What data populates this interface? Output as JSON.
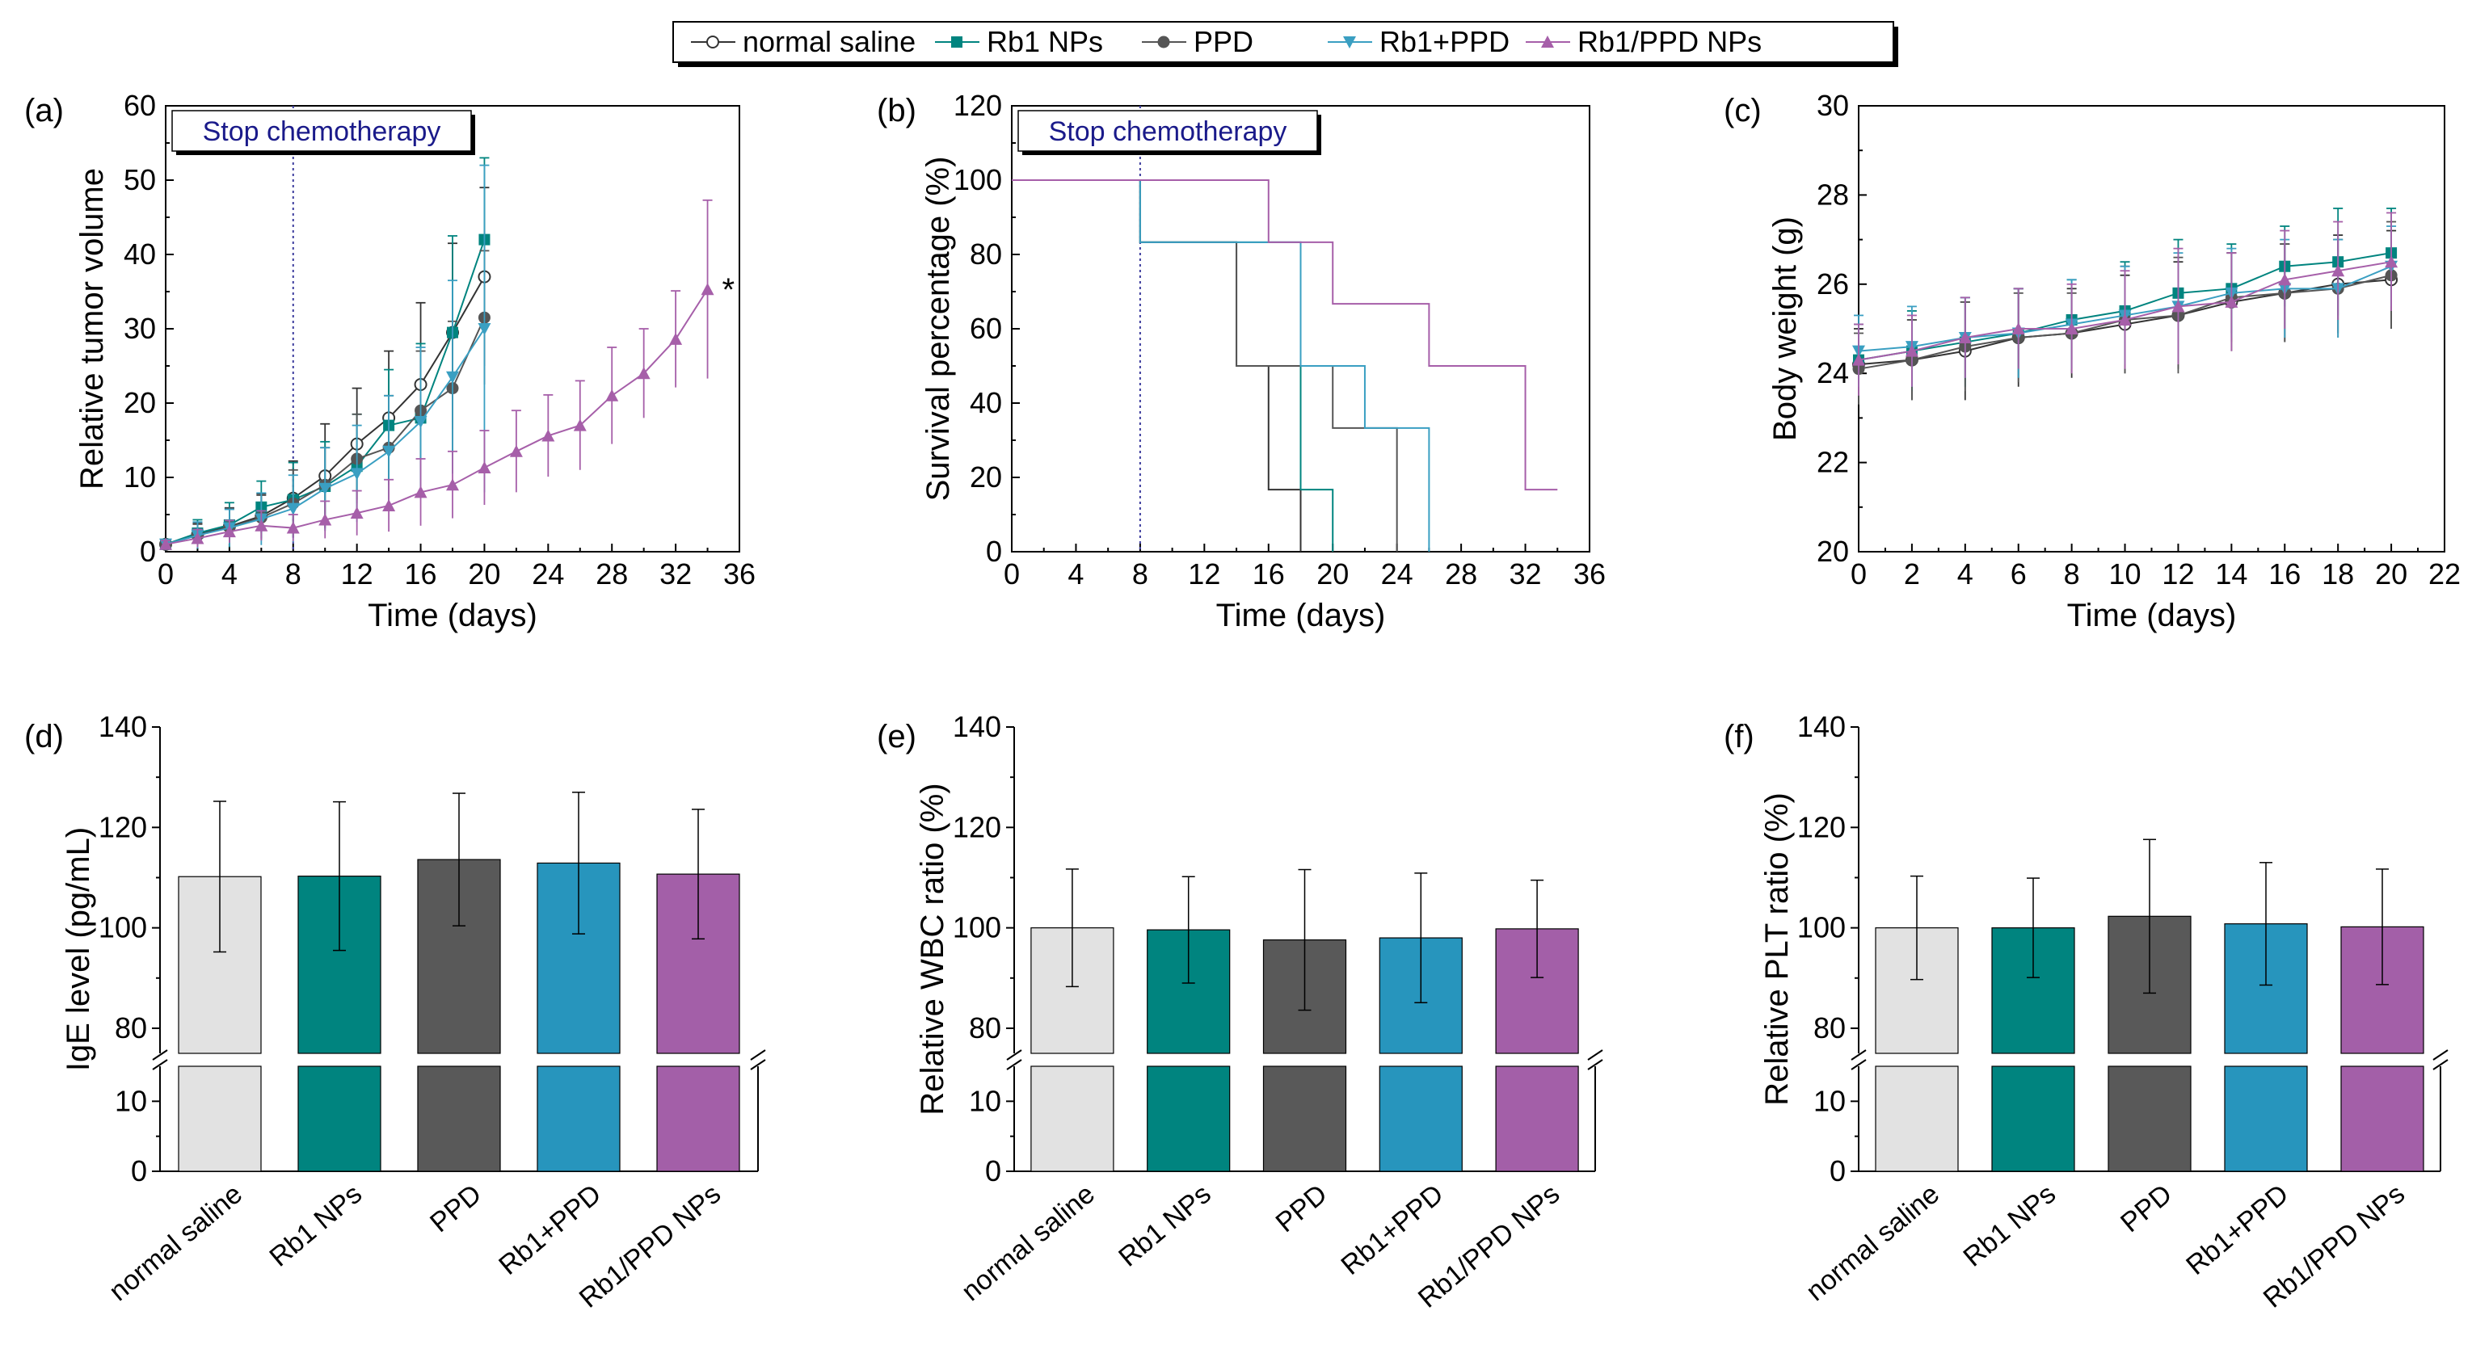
{
  "colors": {
    "normal saline": "#333333",
    "Rb1 NPs": "#00847f",
    "PPD": "#555555",
    "Rb1+PPD": "#3a9fc2",
    "Rb1/PPD NPs": "#a65fa9",
    "bar_fills": [
      "#e2e2e2",
      "#00847f",
      "#595959",
      "#2795bd",
      "#a35fa8"
    ]
  },
  "legend": [
    {
      "name": "normal saline",
      "marker": "open-circle"
    },
    {
      "name": "Rb1 NPs",
      "marker": "square"
    },
    {
      "name": "PPD",
      "marker": "circle"
    },
    {
      "name": "Rb1+PPD",
      "marker": "triangle-down"
    },
    {
      "name": "Rb1/PPD NPs",
      "marker": "triangle-up"
    }
  ],
  "chart_data": [
    {
      "id": "a",
      "panel_label": "(a)",
      "type": "line",
      "xlabel": "Time (days)",
      "ylabel": "Relative tumor volume",
      "xlim": [
        0,
        36
      ],
      "ylim": [
        0,
        60
      ],
      "xticks": [
        "0",
        "4",
        "8",
        "12",
        "16",
        "20",
        "24",
        "28",
        "32",
        "36"
      ],
      "yticks": [
        "0",
        "10",
        "20",
        "30",
        "40",
        "50",
        "60"
      ],
      "annotation": "Stop chemotherapy",
      "marker_line_x": 8,
      "star_label": "*",
      "series": [
        {
          "name": "normal saline",
          "x": [
            0,
            2,
            4,
            6,
            8,
            10,
            12,
            14,
            16,
            18,
            20
          ],
          "y": [
            1,
            2.3,
            3.4,
            4.8,
            7.2,
            10.2,
            14.5,
            18,
            22.5,
            29.5,
            37
          ],
          "err": [
            0.6,
            1.5,
            2.5,
            3,
            5,
            7,
            7.5,
            9,
            11,
            12,
            12
          ]
        },
        {
          "name": "Rb1 NPs",
          "x": [
            0,
            2,
            4,
            6,
            8,
            10,
            12,
            14,
            16,
            18,
            20
          ],
          "y": [
            1,
            2.5,
            3.6,
            6,
            7,
            8.8,
            11.5,
            17,
            18,
            29.5,
            42
          ],
          "err": [
            0.6,
            1.8,
            3,
            3.5,
            5,
            6,
            7,
            7.5,
            10,
            13,
            11
          ]
        },
        {
          "name": "PPD",
          "x": [
            0,
            2,
            4,
            6,
            8,
            10,
            12,
            14,
            16,
            18,
            20
          ],
          "y": [
            1,
            2.2,
            3.3,
            4.6,
            6.5,
            9,
            12.5,
            14,
            19,
            22,
            31.5
          ],
          "err": [
            0.6,
            1.5,
            2.5,
            3,
            4.5,
            5,
            6,
            7,
            8,
            9,
            9
          ]
        },
        {
          "name": "Rb1+PPD",
          "x": [
            0,
            2,
            4,
            6,
            8,
            10,
            12,
            14,
            16,
            18,
            20
          ],
          "y": [
            1,
            2.2,
            3.2,
            4.4,
            5.8,
            8.5,
            10.5,
            13.5,
            17.5,
            23.5,
            30
          ],
          "err": [
            0.6,
            1.8,
            2.5,
            3.5,
            4.5,
            5.5,
            6.5,
            7.5,
            10,
            13,
            22
          ]
        },
        {
          "name": "Rb1/PPD NPs",
          "x": [
            0,
            2,
            4,
            6,
            8,
            10,
            12,
            14,
            16,
            18,
            20,
            22,
            24,
            26,
            28,
            30,
            32,
            34
          ],
          "y": [
            1,
            1.8,
            2.7,
            3.5,
            3.2,
            4.3,
            5.2,
            6.2,
            8,
            9,
            11.3,
            13.5,
            15.6,
            17,
            21,
            24,
            28.6,
            35.3
          ],
          "err": [
            0.5,
            1.2,
            1.5,
            2,
            1.8,
            2.5,
            3,
            3.5,
            4.5,
            4.5,
            5,
            5.5,
            5.5,
            6,
            6.5,
            6,
            6.5,
            12
          ]
        }
      ]
    },
    {
      "id": "b",
      "panel_label": "(b)",
      "type": "line",
      "xlabel": "Time (days)",
      "ylabel": "Survival percentage (%)",
      "xlim": [
        0,
        36
      ],
      "ylim": [
        0,
        120
      ],
      "xticks": [
        "0",
        "4",
        "8",
        "12",
        "16",
        "20",
        "24",
        "28",
        "32",
        "36"
      ],
      "yticks": [
        "0",
        "20",
        "40",
        "60",
        "80",
        "100",
        "120"
      ],
      "annotation": "Stop chemotherapy",
      "marker_line_x": 8,
      "series": [
        {
          "name": "normal saline",
          "x": [
            0,
            8,
            14,
            16,
            18
          ],
          "y": [
            100,
            83.3,
            50,
            16.7,
            0
          ]
        },
        {
          "name": "Rb1 NPs",
          "x": [
            0,
            8,
            10,
            18,
            20
          ],
          "y": [
            100,
            83.3,
            83.3,
            16.7,
            0
          ]
        },
        {
          "name": "PPD",
          "x": [
            0,
            8,
            14,
            20,
            24
          ],
          "y": [
            100,
            83.3,
            50,
            33.3,
            0
          ]
        },
        {
          "name": "Rb1+PPD",
          "x": [
            0,
            8,
            10,
            18,
            22,
            26
          ],
          "y": [
            100,
            83.3,
            83.3,
            50,
            33.3,
            0
          ]
        },
        {
          "name": "Rb1/PPD NPs",
          "x": [
            0,
            16,
            20,
            26,
            32,
            34
          ],
          "y": [
            100,
            83.3,
            66.7,
            50,
            16.7,
            16.7
          ]
        }
      ]
    },
    {
      "id": "c",
      "panel_label": "(c)",
      "type": "line",
      "xlabel": "Time (days)",
      "ylabel": "Body weight (g)",
      "xlim": [
        0,
        22
      ],
      "ylim": [
        20,
        30
      ],
      "xticks": [
        "0",
        "2",
        "4",
        "6",
        "8",
        "10",
        "12",
        "14",
        "16",
        "18",
        "20",
        "22"
      ],
      "yticks": [
        "20",
        "22",
        "24",
        "26",
        "28",
        "30"
      ],
      "series": [
        {
          "name": "normal saline",
          "x": [
            0,
            2,
            4,
            6,
            8,
            10,
            12,
            14,
            16,
            18,
            20
          ],
          "y": [
            24.2,
            24.3,
            24.5,
            24.8,
            24.9,
            25.1,
            25.3,
            25.6,
            25.8,
            26,
            26.1
          ],
          "err": [
            0.8,
            0.9,
            1.1,
            1.1,
            1,
            1.1,
            1.2,
            1.1,
            1.1,
            1.1,
            1.1
          ]
        },
        {
          "name": "Rb1 NPs",
          "x": [
            0,
            2,
            4,
            6,
            8,
            10,
            12,
            14,
            16,
            18,
            20
          ],
          "y": [
            24.3,
            24.5,
            24.7,
            24.9,
            25.2,
            25.4,
            25.8,
            25.9,
            26.4,
            26.5,
            26.7
          ],
          "err": [
            0.8,
            0.9,
            1,
            1,
            0.9,
            1.1,
            1.2,
            1,
            0.9,
            1.2,
            1
          ]
        },
        {
          "name": "PPD",
          "x": [
            0,
            2,
            4,
            6,
            8,
            10,
            12,
            14,
            16,
            18,
            20
          ],
          "y": [
            24.1,
            24.3,
            24.6,
            24.8,
            24.9,
            25.2,
            25.3,
            25.7,
            25.8,
            25.9,
            26.2
          ],
          "err": [
            0.8,
            0.9,
            1,
            1,
            0.9,
            1.2,
            1.3,
            1,
            1.1,
            1.1,
            1.2
          ]
        },
        {
          "name": "Rb1+PPD",
          "x": [
            0,
            2,
            4,
            6,
            8,
            10,
            12,
            14,
            16,
            18,
            20
          ],
          "y": [
            24.5,
            24.6,
            24.8,
            24.9,
            25.1,
            25.3,
            25.5,
            25.8,
            25.9,
            25.9,
            26.4
          ],
          "err": [
            0.8,
            0.9,
            0.9,
            1,
            1,
            1.1,
            1.2,
            1,
            1.1,
            1.1,
            0.9
          ]
        },
        {
          "name": "Rb1/PPD NPs",
          "x": [
            0,
            2,
            4,
            6,
            8,
            10,
            12,
            14,
            16,
            18,
            20
          ],
          "y": [
            24.3,
            24.5,
            24.8,
            25,
            25,
            25.2,
            25.5,
            25.6,
            26.1,
            26.3,
            26.5
          ],
          "err": [
            0.8,
            0.8,
            0.9,
            0.9,
            1,
            1.1,
            1.3,
            1.1,
            1.1,
            1.1,
            1.1
          ]
        }
      ]
    },
    {
      "id": "d",
      "panel_label": "(d)",
      "type": "bar",
      "ylabel": "IgE level (pg/mL)",
      "categories": [
        "normal saline",
        "Rb1 NPs",
        "PPD",
        "Rb1+PPD",
        "Rb1/PPD NPs"
      ],
      "values": [
        110.2,
        110.3,
        113.6,
        112.9,
        110.7
      ],
      "errors": [
        15,
        14.8,
        13.2,
        14.1,
        12.9
      ],
      "ylim": [
        0,
        140
      ],
      "axis_break": [
        15,
        75
      ],
      "yticks_low": [
        "0",
        "10"
      ],
      "yticks_high": [
        "80",
        "100",
        "120",
        "140"
      ]
    },
    {
      "id": "e",
      "panel_label": "(e)",
      "type": "bar",
      "ylabel": "Relative WBC ratio (%)",
      "categories": [
        "normal saline",
        "Rb1 NPs",
        "PPD",
        "Rb1+PPD",
        "Rb1/PPD NPs"
      ],
      "values": [
        100,
        99.6,
        97.6,
        98,
        99.8
      ],
      "errors": [
        11.7,
        10.6,
        14,
        12.9,
        9.7
      ],
      "ylim": [
        0,
        140
      ],
      "axis_break": [
        15,
        75
      ],
      "yticks_low": [
        "0",
        "10"
      ],
      "yticks_high": [
        "80",
        "100",
        "120",
        "140"
      ]
    },
    {
      "id": "f",
      "panel_label": "(f)",
      "type": "bar",
      "ylabel": "Relative PLT ratio (%)",
      "categories": [
        "normal saline",
        "Rb1 NPs",
        "PPD",
        "Rb1+PPD",
        "Rb1/PPD NPs"
      ],
      "values": [
        100,
        100,
        102.3,
        100.8,
        100.2
      ],
      "errors": [
        10.3,
        9.9,
        15.3,
        12.2,
        11.5
      ],
      "ylim": [
        0,
        140
      ],
      "axis_break": [
        15,
        75
      ],
      "yticks_low": [
        "0",
        "10"
      ],
      "yticks_high": [
        "80",
        "100",
        "120",
        "140"
      ]
    }
  ]
}
